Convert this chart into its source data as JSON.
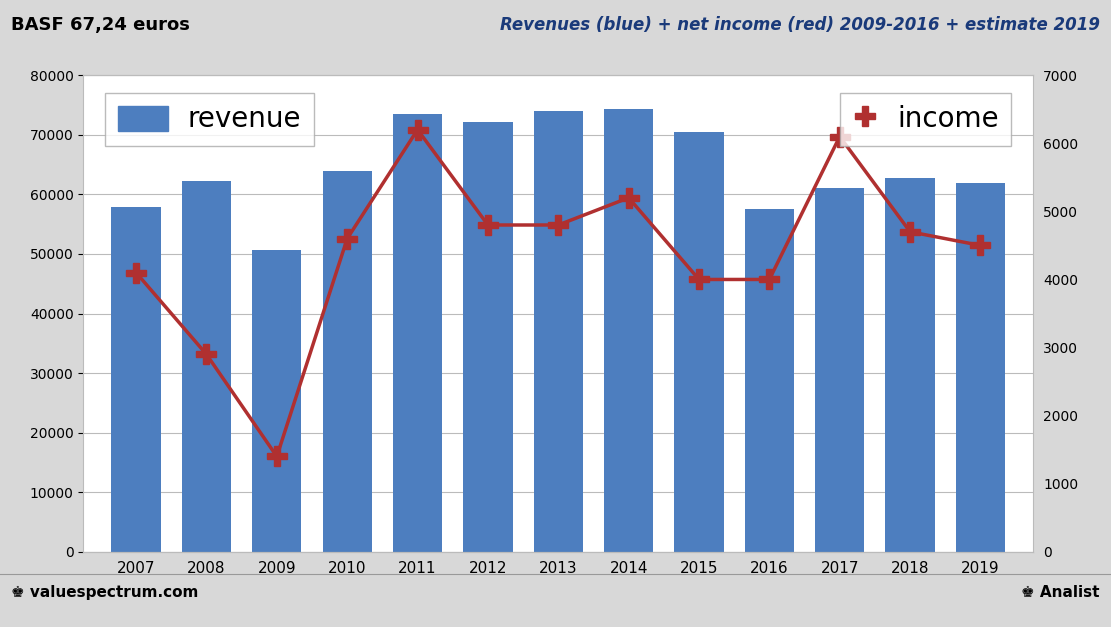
{
  "years": [
    2007,
    2008,
    2009,
    2010,
    2011,
    2012,
    2013,
    2014,
    2015,
    2016,
    2017,
    2018,
    2019
  ],
  "revenue": [
    57838,
    62304,
    50693,
    63873,
    73497,
    72129,
    73973,
    74326,
    70449,
    57550,
    60988,
    62675,
    61835
  ],
  "income": [
    4100,
    2900,
    1400,
    4600,
    6200,
    4800,
    4800,
    5200,
    4000,
    4000,
    6100,
    4700,
    4500
  ],
  "bar_color": "#4d7ebf",
  "line_color": "#b03030",
  "bg_color": "#d8d8d8",
  "plot_bg_color": "#ffffff",
  "title_left": "BASF 67,24 euros",
  "title_right": "Revenues (blue) + net income (red) 2009-2016 + estimate 2019",
  "ylim_left": [
    0,
    80000
  ],
  "ylim_right": [
    0,
    7000
  ],
  "yticks_left": [
    0,
    10000,
    20000,
    30000,
    40000,
    50000,
    60000,
    70000,
    80000
  ],
  "yticks_right": [
    0,
    1000,
    2000,
    3000,
    4000,
    5000,
    6000,
    7000
  ],
  "legend_revenue": "revenue",
  "legend_income": "income",
  "footer_left": "♚ valuespectrum.com",
  "footer_right": "♚ Analist",
  "linewidth": 2.5,
  "marker_size": 14,
  "bar_width": 0.7
}
